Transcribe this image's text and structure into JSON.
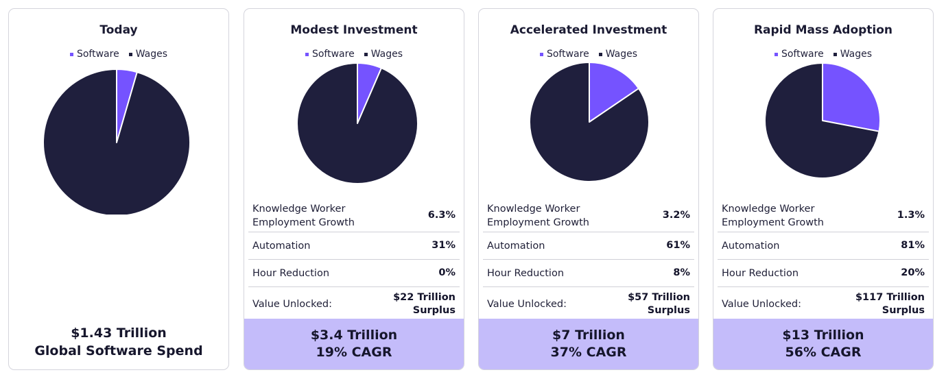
{
  "chart_data": [
    {
      "type": "pie",
      "title": "Today",
      "legend": [
        "Software",
        "Wages"
      ],
      "slices": [
        {
          "label": "Software",
          "value": 4.5
        },
        {
          "label": "Wages",
          "value": 95.5
        }
      ],
      "footer_lines": [
        "$1.43 Trillion",
        "Global Software Spend"
      ]
    },
    {
      "type": "pie",
      "title": "Modest Investment",
      "legend": [
        "Software",
        "Wages"
      ],
      "slices": [
        {
          "label": "Software",
          "value": 6.5
        },
        {
          "label": "Wages",
          "value": 93.5
        }
      ],
      "metrics": [
        {
          "label": "Knowledge Worker Employment Growth",
          "value": "6.3%"
        },
        {
          "label": "Automation",
          "value": "31%"
        },
        {
          "label": "Hour Reduction",
          "value": "0%"
        },
        {
          "label": "Value Unlocked:",
          "value": "$22 Trillion Surplus"
        }
      ],
      "footer_lines": [
        "$3.4 Trillion",
        "19% CAGR"
      ]
    },
    {
      "type": "pie",
      "title": "Accelerated Investment",
      "legend": [
        "Software",
        "Wages"
      ],
      "slices": [
        {
          "label": "Software",
          "value": 15.5
        },
        {
          "label": "Wages",
          "value": 84.5
        }
      ],
      "metrics": [
        {
          "label": "Knowledge Worker Employment Growth",
          "value": "3.2%"
        },
        {
          "label": "Automation",
          "value": "61%"
        },
        {
          "label": "Hour Reduction",
          "value": "8%"
        },
        {
          "label": "Value Unlocked:",
          "value": "$57 Trillion Surplus"
        }
      ],
      "footer_lines": [
        "$7 Trillion",
        "37% CAGR"
      ]
    },
    {
      "type": "pie",
      "title": "Rapid Mass Adoption",
      "legend": [
        "Software",
        "Wages"
      ],
      "slices": [
        {
          "label": "Software",
          "value": 28
        },
        {
          "label": "Wages",
          "value": 72
        }
      ],
      "metrics": [
        {
          "label": "Knowledge Worker Employment Growth",
          "value": "1.3%"
        },
        {
          "label": "Automation",
          "value": "81%"
        },
        {
          "label": "Hour Reduction",
          "value": "20%"
        },
        {
          "label": "Value Unlocked:",
          "value": "$117 Trillion Surplus"
        }
      ],
      "footer_lines": [
        "$13 Trillion",
        "56% CAGR"
      ]
    }
  ],
  "colors": {
    "software": "#7553ff",
    "wages": "#1f1f3d",
    "footer_bg": "#c4bcfa",
    "divider": "#cfcfd6"
  }
}
